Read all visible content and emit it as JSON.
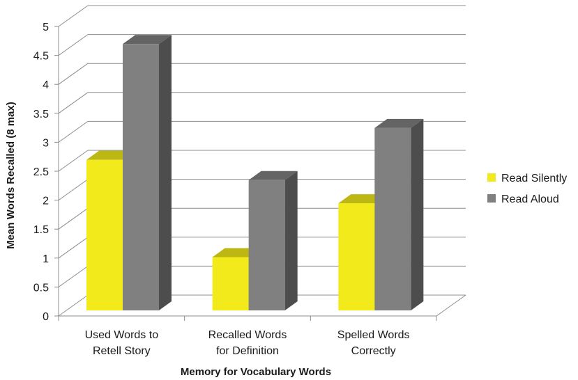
{
  "chart_data": {
    "type": "bar",
    "style": "3d-clustered-column",
    "categories": [
      [
        "Used Words to",
        "Retell Story"
      ],
      [
        "Recalled Words",
        "for Definition"
      ],
      [
        "Spelled Words",
        "Correctly"
      ]
    ],
    "series": [
      {
        "name": "Read Silently",
        "color": "#f2ea1a",
        "values": [
          2.6,
          0.92,
          1.85
        ]
      },
      {
        "name": "Read Aloud",
        "color": "#808080",
        "values": [
          4.6,
          2.25,
          3.15
        ]
      }
    ],
    "xlabel": "Memory  for Vocabulary Words",
    "ylabel": "Mean Words Recalled (8 max)",
    "ylim": [
      0,
      5
    ],
    "yticks": [
      "0",
      "0.5",
      "1",
      "1.5",
      "2",
      "2.5",
      "3",
      "3.5",
      "4",
      "4.5",
      "5"
    ],
    "grid": true,
    "legend_position": "right"
  }
}
